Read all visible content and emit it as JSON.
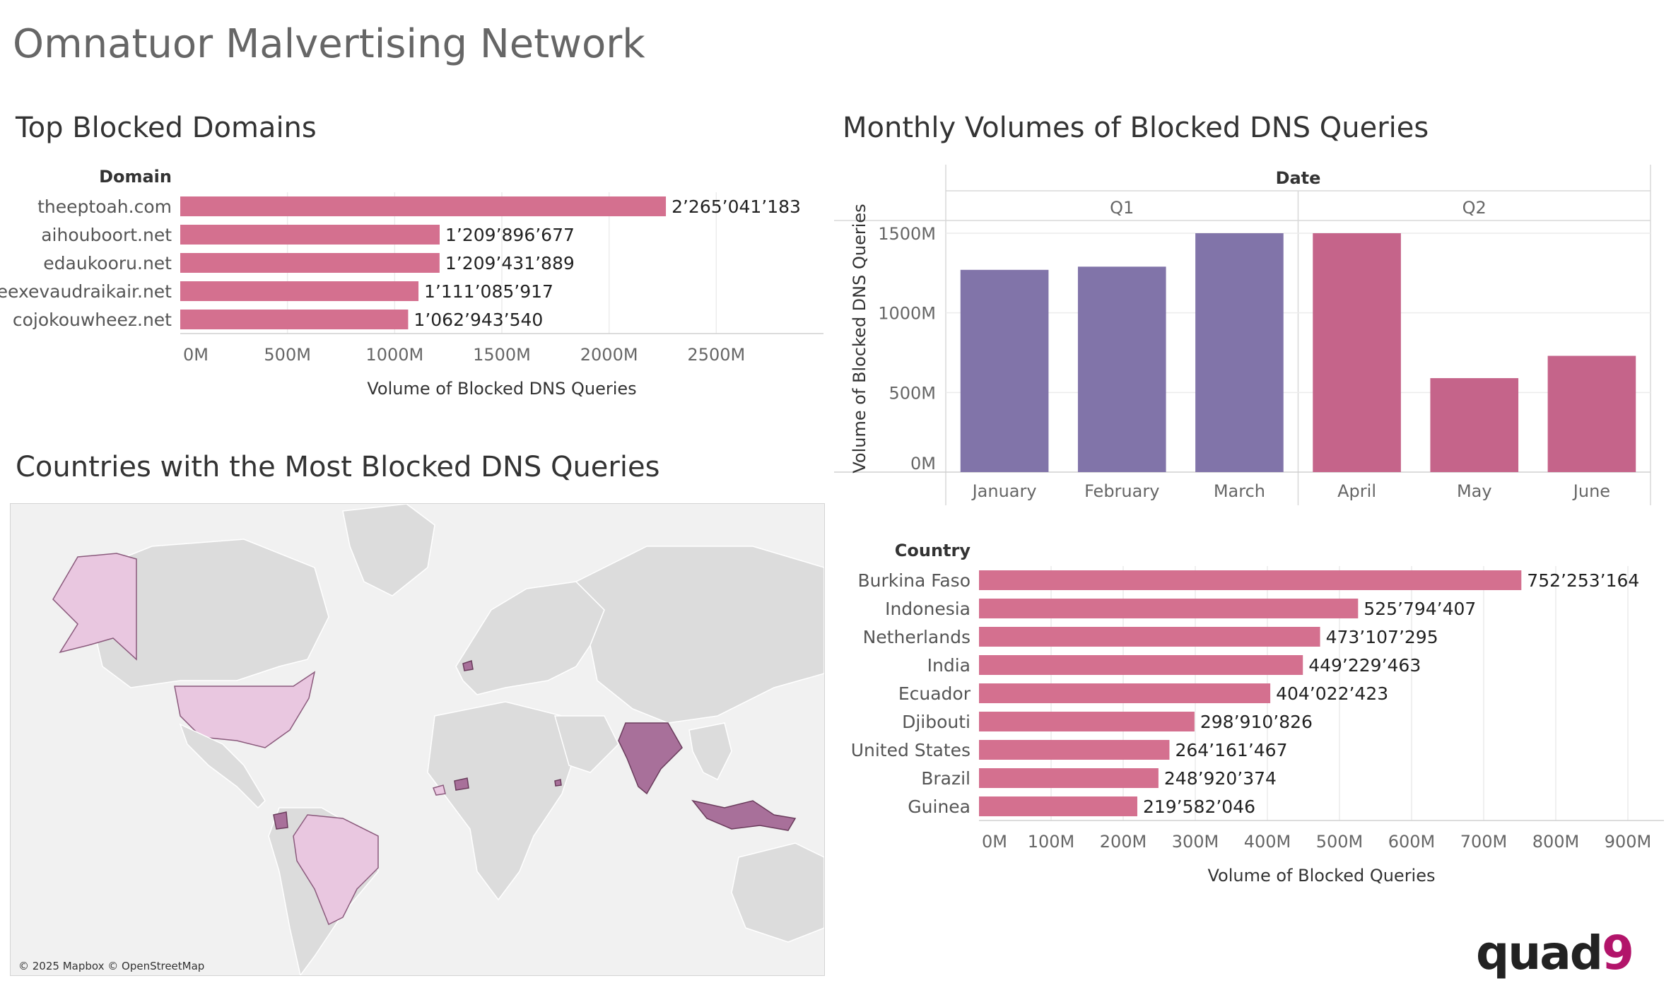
{
  "page_title": "Omnatuor Malvertising Network",
  "sections": {
    "domains_title": "Top Blocked Domains",
    "monthly_title": "Monthly Volumes of Blocked DNS Queries",
    "countries_title": "Countries with the Most Blocked DNS Queries"
  },
  "map": {
    "attribution": "© 2025 Mapbox © OpenStreetMap",
    "highlighted_countries": [
      "United States",
      "Brazil",
      "India",
      "Indonesia",
      "Netherlands",
      "Ecuador",
      "Burkina Faso",
      "Guinea",
      "Djibouti"
    ],
    "colors": {
      "land": "#dcdcdc",
      "water": "#f1f1f1",
      "light_highlight": "#e9c7e0",
      "dark_highlight": "#a8709a"
    }
  },
  "logo": {
    "text": "quad",
    "accent": "9"
  },
  "chart_data": [
    {
      "id": "domains",
      "type": "bar",
      "orientation": "horizontal",
      "category_header": "Domain",
      "categories": [
        "theeptoah.com",
        "aihouboort.net",
        "edaukooru.net",
        "eexevaudraikair.net",
        "cojokouwheez.net"
      ],
      "values": [
        2265041183,
        1209896677,
        1209431889,
        1111085917,
        1062943540
      ],
      "value_labels": [
        "2’265’041’183",
        "1’209’896’677",
        "1’209’431’889",
        "1’111’085’917",
        "1’062’943’540"
      ],
      "xlabel": "Volume of Blocked DNS Queries",
      "xlim": [
        0,
        3000000000
      ],
      "ticks": [
        0,
        500000000,
        1000000000,
        1500000000,
        2000000000,
        2500000000
      ],
      "tick_labels": [
        "0M",
        "500M",
        "1000M",
        "1500M",
        "2000M",
        "2500M"
      ],
      "grid": true,
      "color": "#d4708f"
    },
    {
      "id": "monthly",
      "type": "bar",
      "column_header": "Date",
      "groups": [
        {
          "label": "Q1",
          "categories": [
            "January",
            "February",
            "March"
          ],
          "values": [
            1270000000,
            1290000000,
            1500000000
          ],
          "color": "#8174a9"
        },
        {
          "label": "Q2",
          "categories": [
            "April",
            "May",
            "June"
          ],
          "values": [
            1500000000,
            590000000,
            730000000
          ],
          "color": "#c5648a"
        }
      ],
      "ylabel": "Volume of Blocked DNS Queries",
      "ylim": [
        0,
        1500000000
      ],
      "ticks": [
        0,
        500000000,
        1000000000,
        1500000000
      ],
      "tick_labels": [
        "0M",
        "500M",
        "1000M",
        "1500M"
      ],
      "grid": true
    },
    {
      "id": "countries",
      "type": "bar",
      "orientation": "horizontal",
      "category_header": "Country",
      "categories": [
        "Burkina Faso",
        "Indonesia",
        "Netherlands",
        "India",
        "Ecuador",
        "Djibouti",
        "United States",
        "Brazil",
        "Guinea"
      ],
      "values": [
        752253164,
        525794407,
        473107295,
        449229463,
        404022423,
        298910826,
        264161467,
        248920374,
        219582046
      ],
      "value_labels": [
        "752’253’164",
        "525’794’407",
        "473’107’295",
        "449’229’463",
        "404’022’423",
        "298’910’826",
        "264’161’467",
        "248’920’374",
        "219’582’046"
      ],
      "xlabel": "Volume of Blocked Queries",
      "xlim": [
        0,
        950000000
      ],
      "ticks": [
        0,
        100000000,
        200000000,
        300000000,
        400000000,
        500000000,
        600000000,
        700000000,
        800000000,
        900000000
      ],
      "tick_labels": [
        "0M",
        "100M",
        "200M",
        "300M",
        "400M",
        "500M",
        "600M",
        "700M",
        "800M",
        "900M"
      ],
      "grid": true,
      "color": "#d4708f"
    }
  ]
}
